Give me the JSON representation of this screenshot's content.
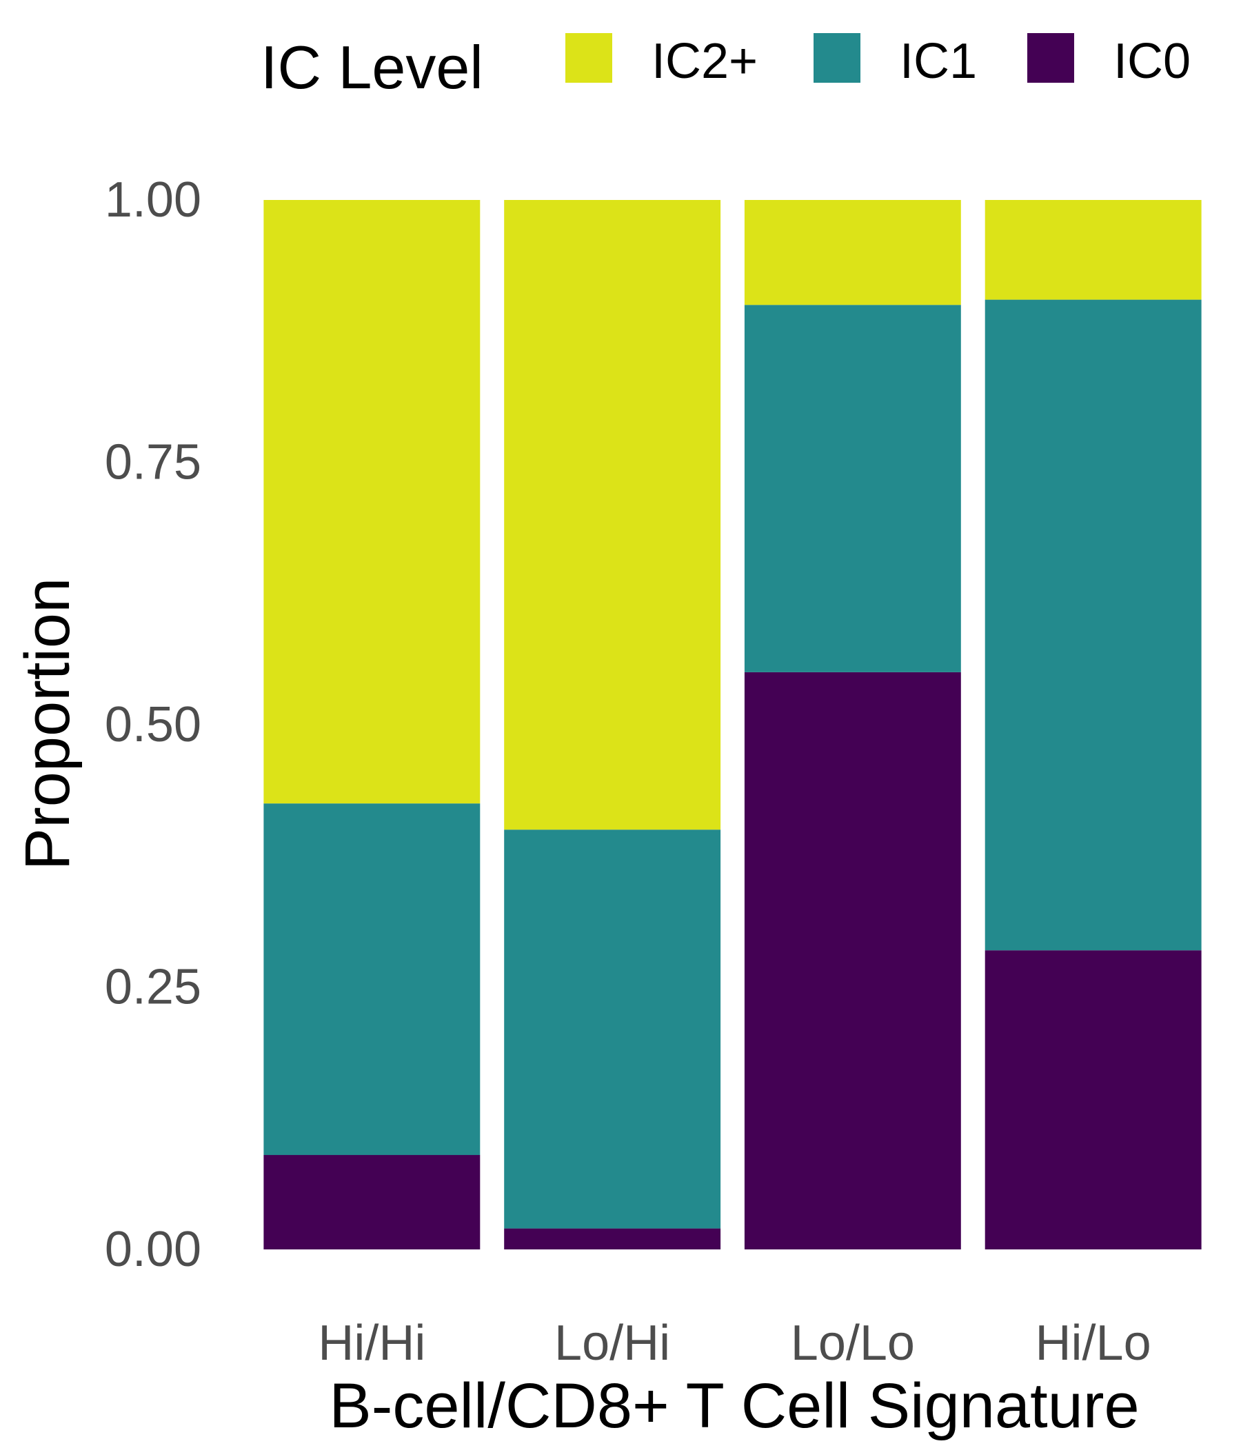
{
  "chart_data": {
    "type": "bar",
    "stacked": true,
    "categories": [
      "Hi/Hi",
      "Lo/Hi",
      "Lo/Lo",
      "Hi/Lo"
    ],
    "series": [
      {
        "name": "IC0",
        "values": [
          0.09,
          0.02,
          0.55,
          0.285
        ],
        "color": "#440154"
      },
      {
        "name": "IC1",
        "values": [
          0.335,
          0.38,
          0.35,
          0.62
        ],
        "color": "#238A8D"
      },
      {
        "name": "IC2+",
        "values": [
          0.575,
          0.6,
          0.1,
          0.095
        ],
        "color": "#DCE318"
      }
    ],
    "xlabel": "B-cell/CD8+ T Cell Signature",
    "ylabel": "Proportion",
    "ylim": [
      0,
      1
    ],
    "yticks": [
      "0.00",
      "0.25",
      "0.50",
      "0.75",
      "1.00"
    ],
    "grid": false,
    "legend": {
      "title": "IC Level",
      "position": "top",
      "entries": [
        "IC2+",
        "IC1",
        "IC0"
      ]
    }
  }
}
